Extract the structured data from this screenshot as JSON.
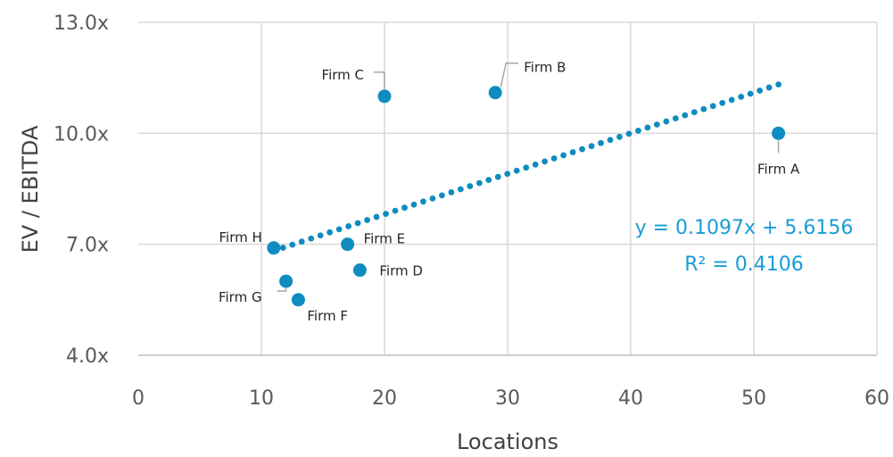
{
  "chart_data": {
    "type": "scatter",
    "title": "",
    "xlabel": "Locations",
    "ylabel": "EV / EBITDA",
    "xlim": [
      0,
      60
    ],
    "ylim": [
      4,
      13
    ],
    "x_ticks": [
      "0",
      "10",
      "20",
      "30",
      "40",
      "50",
      "60"
    ],
    "y_ticks": [
      "4.0x",
      "7.0x",
      "10.0x",
      "13.0x"
    ],
    "grid": true,
    "points": [
      {
        "label": "Firm A",
        "x": 52,
        "y": 10.0
      },
      {
        "label": "Firm B",
        "x": 29,
        "y": 11.1
      },
      {
        "label": "Firm C",
        "x": 20,
        "y": 11.0
      },
      {
        "label": "Firm D",
        "x": 18,
        "y": 6.3
      },
      {
        "label": "Firm E",
        "x": 17,
        "y": 7.0
      },
      {
        "label": "Firm F",
        "x": 13,
        "y": 5.5
      },
      {
        "label": "Firm G",
        "x": 12,
        "y": 6.0
      },
      {
        "label": "Firm H",
        "x": 11,
        "y": 6.9
      }
    ],
    "trendline": {
      "type": "linear",
      "slope": 0.1097,
      "intercept": 5.6156,
      "x_range": [
        11,
        52
      ],
      "equation": "y = 0.1097x + 5.6156",
      "r_squared": "R² = 0.4106"
    },
    "colors": {
      "point": "#0f8cbf",
      "trendline": "#0f8cbf",
      "equation": "#1a9bd7",
      "grid": "#d9d9d9"
    }
  }
}
